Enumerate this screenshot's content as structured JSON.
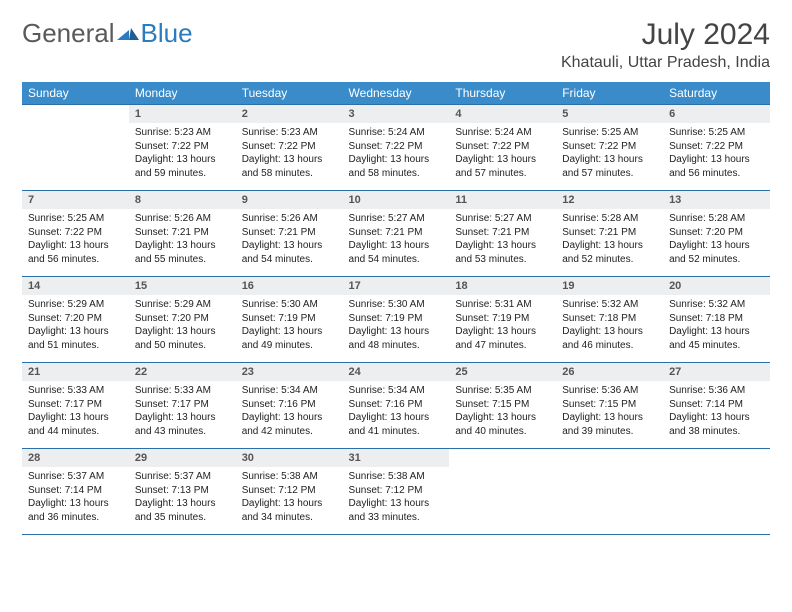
{
  "brand": {
    "part1": "General",
    "part2": "Blue"
  },
  "title": "July 2024",
  "location": "Khatauli, Uttar Pradesh, India",
  "colors": {
    "header_bg": "#3a8bc9",
    "header_text": "#ffffff",
    "daynum_bg": "#eceef0",
    "border": "#2b6fa8",
    "brand_gray": "#5a5a5a",
    "brand_blue": "#2b7bbf"
  },
  "weekdays": [
    "Sunday",
    "Monday",
    "Tuesday",
    "Wednesday",
    "Thursday",
    "Friday",
    "Saturday"
  ],
  "weeks": [
    [
      null,
      {
        "n": "1",
        "sunrise": "Sunrise: 5:23 AM",
        "sunset": "Sunset: 7:22 PM",
        "daylight": "Daylight: 13 hours and 59 minutes."
      },
      {
        "n": "2",
        "sunrise": "Sunrise: 5:23 AM",
        "sunset": "Sunset: 7:22 PM",
        "daylight": "Daylight: 13 hours and 58 minutes."
      },
      {
        "n": "3",
        "sunrise": "Sunrise: 5:24 AM",
        "sunset": "Sunset: 7:22 PM",
        "daylight": "Daylight: 13 hours and 58 minutes."
      },
      {
        "n": "4",
        "sunrise": "Sunrise: 5:24 AM",
        "sunset": "Sunset: 7:22 PM",
        "daylight": "Daylight: 13 hours and 57 minutes."
      },
      {
        "n": "5",
        "sunrise": "Sunrise: 5:25 AM",
        "sunset": "Sunset: 7:22 PM",
        "daylight": "Daylight: 13 hours and 57 minutes."
      },
      {
        "n": "6",
        "sunrise": "Sunrise: 5:25 AM",
        "sunset": "Sunset: 7:22 PM",
        "daylight": "Daylight: 13 hours and 56 minutes."
      }
    ],
    [
      {
        "n": "7",
        "sunrise": "Sunrise: 5:25 AM",
        "sunset": "Sunset: 7:22 PM",
        "daylight": "Daylight: 13 hours and 56 minutes."
      },
      {
        "n": "8",
        "sunrise": "Sunrise: 5:26 AM",
        "sunset": "Sunset: 7:21 PM",
        "daylight": "Daylight: 13 hours and 55 minutes."
      },
      {
        "n": "9",
        "sunrise": "Sunrise: 5:26 AM",
        "sunset": "Sunset: 7:21 PM",
        "daylight": "Daylight: 13 hours and 54 minutes."
      },
      {
        "n": "10",
        "sunrise": "Sunrise: 5:27 AM",
        "sunset": "Sunset: 7:21 PM",
        "daylight": "Daylight: 13 hours and 54 minutes."
      },
      {
        "n": "11",
        "sunrise": "Sunrise: 5:27 AM",
        "sunset": "Sunset: 7:21 PM",
        "daylight": "Daylight: 13 hours and 53 minutes."
      },
      {
        "n": "12",
        "sunrise": "Sunrise: 5:28 AM",
        "sunset": "Sunset: 7:21 PM",
        "daylight": "Daylight: 13 hours and 52 minutes."
      },
      {
        "n": "13",
        "sunrise": "Sunrise: 5:28 AM",
        "sunset": "Sunset: 7:20 PM",
        "daylight": "Daylight: 13 hours and 52 minutes."
      }
    ],
    [
      {
        "n": "14",
        "sunrise": "Sunrise: 5:29 AM",
        "sunset": "Sunset: 7:20 PM",
        "daylight": "Daylight: 13 hours and 51 minutes."
      },
      {
        "n": "15",
        "sunrise": "Sunrise: 5:29 AM",
        "sunset": "Sunset: 7:20 PM",
        "daylight": "Daylight: 13 hours and 50 minutes."
      },
      {
        "n": "16",
        "sunrise": "Sunrise: 5:30 AM",
        "sunset": "Sunset: 7:19 PM",
        "daylight": "Daylight: 13 hours and 49 minutes."
      },
      {
        "n": "17",
        "sunrise": "Sunrise: 5:30 AM",
        "sunset": "Sunset: 7:19 PM",
        "daylight": "Daylight: 13 hours and 48 minutes."
      },
      {
        "n": "18",
        "sunrise": "Sunrise: 5:31 AM",
        "sunset": "Sunset: 7:19 PM",
        "daylight": "Daylight: 13 hours and 47 minutes."
      },
      {
        "n": "19",
        "sunrise": "Sunrise: 5:32 AM",
        "sunset": "Sunset: 7:18 PM",
        "daylight": "Daylight: 13 hours and 46 minutes."
      },
      {
        "n": "20",
        "sunrise": "Sunrise: 5:32 AM",
        "sunset": "Sunset: 7:18 PM",
        "daylight": "Daylight: 13 hours and 45 minutes."
      }
    ],
    [
      {
        "n": "21",
        "sunrise": "Sunrise: 5:33 AM",
        "sunset": "Sunset: 7:17 PM",
        "daylight": "Daylight: 13 hours and 44 minutes."
      },
      {
        "n": "22",
        "sunrise": "Sunrise: 5:33 AM",
        "sunset": "Sunset: 7:17 PM",
        "daylight": "Daylight: 13 hours and 43 minutes."
      },
      {
        "n": "23",
        "sunrise": "Sunrise: 5:34 AM",
        "sunset": "Sunset: 7:16 PM",
        "daylight": "Daylight: 13 hours and 42 minutes."
      },
      {
        "n": "24",
        "sunrise": "Sunrise: 5:34 AM",
        "sunset": "Sunset: 7:16 PM",
        "daylight": "Daylight: 13 hours and 41 minutes."
      },
      {
        "n": "25",
        "sunrise": "Sunrise: 5:35 AM",
        "sunset": "Sunset: 7:15 PM",
        "daylight": "Daylight: 13 hours and 40 minutes."
      },
      {
        "n": "26",
        "sunrise": "Sunrise: 5:36 AM",
        "sunset": "Sunset: 7:15 PM",
        "daylight": "Daylight: 13 hours and 39 minutes."
      },
      {
        "n": "27",
        "sunrise": "Sunrise: 5:36 AM",
        "sunset": "Sunset: 7:14 PM",
        "daylight": "Daylight: 13 hours and 38 minutes."
      }
    ],
    [
      {
        "n": "28",
        "sunrise": "Sunrise: 5:37 AM",
        "sunset": "Sunset: 7:14 PM",
        "daylight": "Daylight: 13 hours and 36 minutes."
      },
      {
        "n": "29",
        "sunrise": "Sunrise: 5:37 AM",
        "sunset": "Sunset: 7:13 PM",
        "daylight": "Daylight: 13 hours and 35 minutes."
      },
      {
        "n": "30",
        "sunrise": "Sunrise: 5:38 AM",
        "sunset": "Sunset: 7:12 PM",
        "daylight": "Daylight: 13 hours and 34 minutes."
      },
      {
        "n": "31",
        "sunrise": "Sunrise: 5:38 AM",
        "sunset": "Sunset: 7:12 PM",
        "daylight": "Daylight: 13 hours and 33 minutes."
      },
      null,
      null,
      null
    ]
  ]
}
